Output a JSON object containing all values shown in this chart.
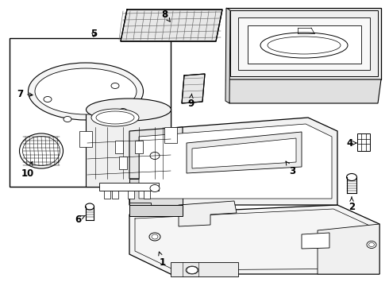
{
  "bg_color": "#ffffff",
  "line_color": "#000000",
  "label_fontsize": 8.5,
  "figsize": [
    4.9,
    3.6
  ],
  "dpi": 100
}
